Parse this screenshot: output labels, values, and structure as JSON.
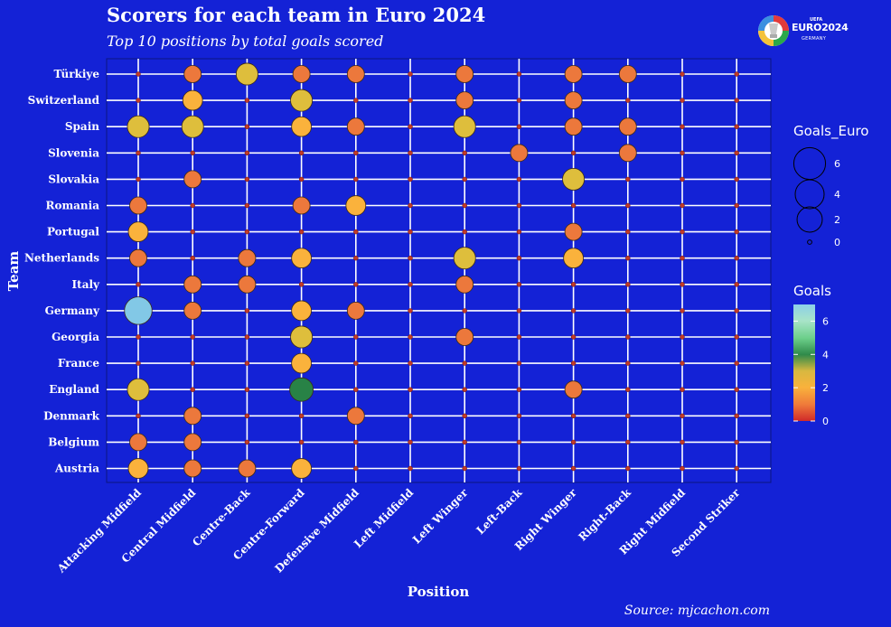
{
  "title": "Scorers for each team in Euro 2024",
  "subtitle": "Top 10 positions by total goals scored",
  "caption": "Source: mjcachon.com",
  "logo": {
    "main": "EURO2024",
    "sub": "GERMANY",
    "top": "UEFA"
  },
  "legend": {
    "size_title": "Goals_Euro",
    "size_breaks": [
      6,
      4,
      2,
      0
    ],
    "color_title": "Goals",
    "color_breaks": [
      6,
      4,
      2,
      0
    ]
  },
  "colors": {
    "background": "#1422d6",
    "panel": "#1422d6",
    "grid": "#ffffff"
  },
  "chart_data": {
    "type": "scatter",
    "xlabel": "Position",
    "ylabel": "Team",
    "x_categories": [
      "Attacking Midfield",
      "Central Midfield",
      "Centre-Back",
      "Centre-Forward",
      "Defensive Midfield",
      "Left Midfield",
      "Left Winger",
      "Left-Back",
      "Right Winger",
      "Right-Back",
      "Right Midfield",
      "Second Striker"
    ],
    "y_categories": [
      "Türkiye",
      "Switzerland",
      "Spain",
      "Slovenia",
      "Slovakia",
      "Romania",
      "Portugal",
      "Netherlands",
      "Italy",
      "Germany",
      "Georgia",
      "France",
      "England",
      "Denmark",
      "Belgium",
      "Austria"
    ],
    "color_range": [
      0,
      7
    ],
    "goals": [
      [
        0,
        1,
        3,
        1,
        1,
        0,
        1,
        0,
        1,
        1,
        0,
        0
      ],
      [
        0,
        2,
        0,
        3,
        0,
        0,
        1,
        0,
        1,
        0,
        0,
        0
      ],
      [
        3,
        3,
        0,
        2,
        1,
        0,
        3,
        0,
        1,
        1,
        0,
        0
      ],
      [
        0,
        0,
        0,
        0,
        0,
        0,
        0,
        1,
        0,
        1,
        0,
        0
      ],
      [
        0,
        1,
        0,
        0,
        0,
        0,
        0,
        0,
        3,
        0,
        0,
        0
      ],
      [
        1,
        0,
        0,
        1,
        2,
        0,
        0,
        0,
        0,
        0,
        0,
        0
      ],
      [
        2,
        0,
        0,
        0,
        0,
        0,
        0,
        0,
        1,
        0,
        0,
        0
      ],
      [
        1,
        0,
        1,
        2,
        0,
        0,
        3,
        0,
        2,
        0,
        0,
        0
      ],
      [
        0,
        1,
        1,
        0,
        0,
        0,
        1,
        0,
        0,
        0,
        0,
        0
      ],
      [
        7,
        1,
        0,
        2,
        1,
        0,
        0,
        0,
        0,
        0,
        0,
        0
      ],
      [
        0,
        0,
        0,
        3,
        0,
        0,
        1,
        0,
        0,
        0,
        0,
        0
      ],
      [
        0,
        0,
        0,
        2,
        0,
        0,
        0,
        0,
        0,
        0,
        0,
        0
      ],
      [
        3,
        0,
        0,
        4,
        0,
        0,
        0,
        0,
        1,
        0,
        0,
        0
      ],
      [
        0,
        1,
        0,
        0,
        1,
        0,
        0,
        0,
        0,
        0,
        0,
        0
      ],
      [
        1,
        1,
        0,
        0,
        0,
        0,
        0,
        0,
        0,
        0,
        0,
        0
      ],
      [
        2,
        1,
        1,
        2,
        0,
        0,
        0,
        0,
        0,
        0,
        0,
        0
      ]
    ]
  }
}
